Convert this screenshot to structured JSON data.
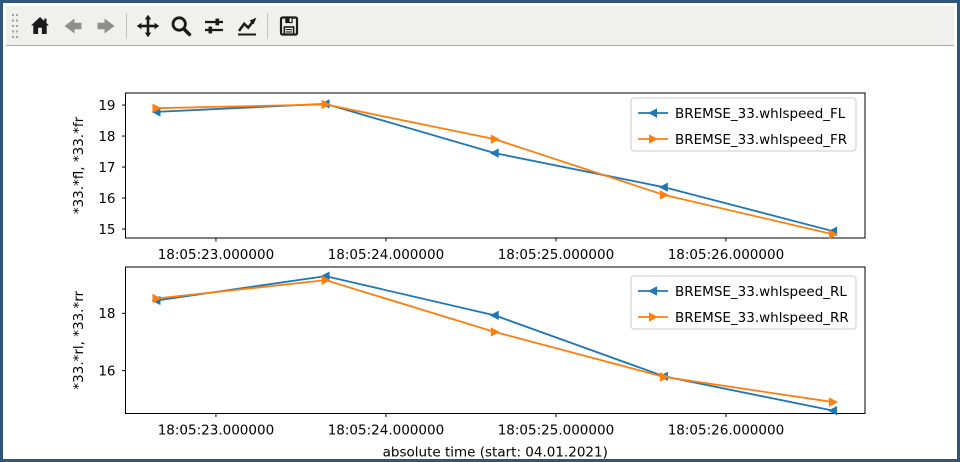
{
  "window": {
    "border_color": "#2d567a",
    "background": "#ffffff",
    "toolbar_background": "#f0f0ef"
  },
  "toolbar": {
    "icons": [
      {
        "name": "home-icon",
        "enabled": true
      },
      {
        "name": "back-icon",
        "enabled": false
      },
      {
        "name": "forward-icon",
        "enabled": false
      },
      {
        "name": "pan-icon",
        "enabled": true
      },
      {
        "name": "zoom-icon",
        "enabled": true
      },
      {
        "name": "configure-subplots-icon",
        "enabled": true
      },
      {
        "name": "edit-parameters-icon",
        "enabled": true
      },
      {
        "name": "save-icon",
        "enabled": true
      }
    ]
  },
  "chart_data": [
    {
      "type": "line",
      "title": "",
      "xlabel": "",
      "ylabel": "*33.*fl, *33.*fr",
      "x": [
        22.65,
        23.645,
        24.64,
        25.635,
        26.63
      ],
      "series": [
        {
          "name": "BREMSE_33.whlspeed_FL",
          "color": "#1f77b4",
          "marker": "left-triangle",
          "values": [
            18.78,
            19.04,
            17.45,
            16.35,
            14.93
          ]
        },
        {
          "name": "BREMSE_33.whlspeed_FR",
          "color": "#ff7f0e",
          "marker": "right-triangle",
          "values": [
            18.9,
            19.02,
            17.9,
            16.1,
            14.83
          ]
        }
      ],
      "xlim": [
        22.468,
        26.818
      ],
      "ylim": [
        14.71,
        19.39
      ],
      "xticks": [
        23,
        24,
        25,
        26
      ],
      "xticklabels": [
        "18:05:23.000000",
        "18:05:24.000000",
        "18:05:25.000000",
        "18:05:26.000000"
      ],
      "yticks": [
        15,
        16,
        17,
        18,
        19
      ],
      "grid": false,
      "legend_position": "upper right"
    },
    {
      "type": "line",
      "title": "",
      "xlabel": "absolute time (start: 04.01.2021)",
      "ylabel": "*33.*rl, *33.*rr",
      "x": [
        22.65,
        23.645,
        24.64,
        25.635,
        26.63
      ],
      "series": [
        {
          "name": "BREMSE_33.whlspeed_RL",
          "color": "#1f77b4",
          "marker": "left-triangle",
          "values": [
            18.45,
            19.3,
            17.93,
            15.8,
            14.6
          ]
        },
        {
          "name": "BREMSE_33.whlspeed_RR",
          "color": "#ff7f0e",
          "marker": "right-triangle",
          "values": [
            18.52,
            19.16,
            17.35,
            15.78,
            14.9
          ]
        }
      ],
      "xlim": [
        22.468,
        26.818
      ],
      "ylim": [
        14.5,
        19.62
      ],
      "xticks": [
        23,
        24,
        25,
        26
      ],
      "xticklabels": [
        "18:05:23.000000",
        "18:05:24.000000",
        "18:05:25.000000",
        "18:05:26.000000"
      ],
      "yticks": [
        16,
        18
      ],
      "grid": false,
      "legend_position": "upper right"
    }
  ]
}
